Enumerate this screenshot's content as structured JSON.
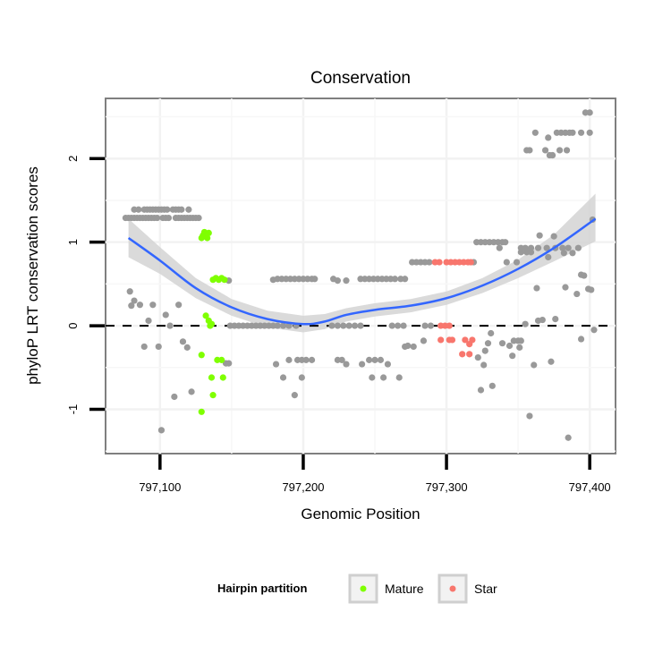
{
  "chart_data": {
    "type": "scatter",
    "title": "Conservation",
    "xlabel": "Genomic Position",
    "ylabel": "phyloP LRT conservation scores",
    "xlim": [
      797062,
      797418
    ],
    "ylim": [
      -1.53,
      2.72
    ],
    "x_ticks": [
      797100,
      797200,
      797300,
      797400
    ],
    "x_tick_labels": [
      "797,100",
      "797,200",
      "797,300",
      "797,400"
    ],
    "y_ticks": [
      -1,
      0,
      1,
      2
    ],
    "y_tick_labels": [
      "-1",
      "0",
      "1",
      "2"
    ],
    "grid": true,
    "reference_line": {
      "y": 0,
      "style": "dashed"
    },
    "legend": {
      "title": "Hairpin partition",
      "placement": "bottom",
      "entries": [
        "Mature",
        "Star"
      ]
    },
    "colors": {
      "other": "#999999",
      "Mature": "#7FFF00",
      "Star": "#F8766D",
      "smooth": "#3366FF",
      "ci": "#D3D3D3"
    },
    "series": [
      {
        "name": "other",
        "points": [
          [
            797082,
            1.39
          ],
          [
            797085,
            1.39
          ],
          [
            797089,
            1.39
          ],
          [
            797091,
            1.39
          ],
          [
            797093,
            1.39
          ],
          [
            797095,
            1.39
          ],
          [
            797097,
            1.39
          ],
          [
            797099,
            1.39
          ],
          [
            797101,
            1.39
          ],
          [
            797103,
            1.39
          ],
          [
            797105,
            1.39
          ],
          [
            797109,
            1.39
          ],
          [
            797111,
            1.39
          ],
          [
            797113,
            1.39
          ],
          [
            797115,
            1.39
          ],
          [
            797120,
            1.39
          ],
          [
            797076,
            1.29
          ],
          [
            797078,
            1.29
          ],
          [
            797080,
            1.29
          ],
          [
            797082,
            1.29
          ],
          [
            797084,
            1.29
          ],
          [
            797086,
            1.29
          ],
          [
            797088,
            1.29
          ],
          [
            797090,
            1.29
          ],
          [
            797092,
            1.29
          ],
          [
            797094,
            1.29
          ],
          [
            797096,
            1.29
          ],
          [
            797098,
            1.29
          ],
          [
            797102,
            1.29
          ],
          [
            797104,
            1.29
          ],
          [
            797106,
            1.29
          ],
          [
            797111,
            1.29
          ],
          [
            797113,
            1.29
          ],
          [
            797115,
            1.29
          ],
          [
            797117,
            1.29
          ],
          [
            797119,
            1.29
          ],
          [
            797121,
            1.29
          ],
          [
            797123,
            1.29
          ],
          [
            797125,
            1.29
          ],
          [
            797127,
            1.29
          ],
          [
            797079,
            0.41
          ],
          [
            797082,
            0.3
          ],
          [
            797080,
            0.24
          ],
          [
            797086,
            0.25
          ],
          [
            797095,
            0.25
          ],
          [
            797113,
            0.25
          ],
          [
            797104,
            0.13
          ],
          [
            797092,
            0.06
          ],
          [
            797107,
            0.0
          ],
          [
            797089,
            -0.25
          ],
          [
            797099,
            -0.25
          ],
          [
            797116,
            -0.19
          ],
          [
            797119,
            -0.26
          ],
          [
            797110,
            -0.85
          ],
          [
            797122,
            -0.79
          ],
          [
            797101,
            -1.25
          ],
          [
            797148,
            0.54
          ],
          [
            797148,
            -0.45
          ],
          [
            797146,
            -0.45
          ],
          [
            797179,
            0.55
          ],
          [
            797182,
            0.56
          ],
          [
            797185,
            0.56
          ],
          [
            797188,
            0.56
          ],
          [
            797191,
            0.56
          ],
          [
            797194,
            0.56
          ],
          [
            797197,
            0.56
          ],
          [
            797200,
            0.56
          ],
          [
            797203,
            0.56
          ],
          [
            797206,
            0.56
          ],
          [
            797208,
            0.56
          ],
          [
            797221,
            0.56
          ],
          [
            797224,
            0.54
          ],
          [
            797230,
            0.54
          ],
          [
            797240,
            0.56
          ],
          [
            797243,
            0.56
          ],
          [
            797246,
            0.56
          ],
          [
            797249,
            0.56
          ],
          [
            797252,
            0.56
          ],
          [
            797255,
            0.56
          ],
          [
            797258,
            0.56
          ],
          [
            797261,
            0.56
          ],
          [
            797264,
            0.56
          ],
          [
            797268,
            0.56
          ],
          [
            797271,
            0.56
          ],
          [
            797149,
            0
          ],
          [
            797152,
            0
          ],
          [
            797155,
            0
          ],
          [
            797158,
            0
          ],
          [
            797161,
            0
          ],
          [
            797164,
            0
          ],
          [
            797167,
            0
          ],
          [
            797170,
            0
          ],
          [
            797173,
            0
          ],
          [
            797176,
            0
          ],
          [
            797179,
            0
          ],
          [
            797182,
            0
          ],
          [
            797186,
            0
          ],
          [
            797190,
            0
          ],
          [
            797195,
            0
          ],
          [
            797220,
            0
          ],
          [
            797224,
            0
          ],
          [
            797228,
            0
          ],
          [
            797232,
            0
          ],
          [
            797236,
            0
          ],
          [
            797240,
            0
          ],
          [
            797262,
            0
          ],
          [
            797266,
            0
          ],
          [
            797270,
            0
          ],
          [
            797285,
            0
          ],
          [
            797289,
            0
          ],
          [
            797181,
            -0.46
          ],
          [
            797190,
            -0.41
          ],
          [
            797196,
            -0.41
          ],
          [
            797199,
            -0.41
          ],
          [
            797202,
            -0.41
          ],
          [
            797206,
            -0.41
          ],
          [
            797224,
            -0.41
          ],
          [
            797227,
            -0.41
          ],
          [
            797230,
            -0.46
          ],
          [
            797241,
            -0.46
          ],
          [
            797246,
            -0.41
          ],
          [
            797250,
            -0.41
          ],
          [
            797254,
            -0.41
          ],
          [
            797259,
            -0.46
          ],
          [
            797186,
            -0.62
          ],
          [
            797199,
            -0.62
          ],
          [
            797248,
            -0.62
          ],
          [
            797256,
            -0.62
          ],
          [
            797267,
            -0.62
          ],
          [
            797194,
            -0.83
          ],
          [
            797271,
            -0.25
          ],
          [
            797277,
            -0.25
          ],
          [
            797276,
            0.76
          ],
          [
            797279,
            0.76
          ],
          [
            797282,
            0.76
          ],
          [
            797285,
            0.76
          ],
          [
            797288,
            0.76
          ],
          [
            797319,
            0.76
          ],
          [
            797284,
            -0.18
          ],
          [
            797273,
            -0.24
          ],
          [
            797321,
            1.0
          ],
          [
            797324,
            1.0
          ],
          [
            797327,
            1.0
          ],
          [
            797330,
            1.0
          ],
          [
            797333,
            1.0
          ],
          [
            797336,
            1.0
          ],
          [
            797339,
            1.0
          ],
          [
            797341,
            1.0
          ],
          [
            797337,
            0.93
          ],
          [
            797342,
            0.76
          ],
          [
            797349,
            0.76
          ],
          [
            797355,
            0.02
          ],
          [
            797364,
            0.06
          ],
          [
            797367,
            0.07
          ],
          [
            797376,
            0.08
          ],
          [
            797331,
            -0.09
          ],
          [
            797329,
            -0.21
          ],
          [
            797327,
            -0.3
          ],
          [
            797322,
            -0.38
          ],
          [
            797326,
            -0.47
          ],
          [
            797324,
            -0.77
          ],
          [
            797332,
            -0.72
          ],
          [
            797339,
            -0.21
          ],
          [
            797344,
            -0.24
          ],
          [
            797347,
            -0.18
          ],
          [
            797350,
            -0.18
          ],
          [
            797352,
            -0.18
          ],
          [
            797346,
            -0.36
          ],
          [
            797351,
            -0.26
          ],
          [
            797361,
            -0.47
          ],
          [
            797373,
            -0.43
          ],
          [
            797358,
            -1.08
          ],
          [
            797385,
            -1.34
          ],
          [
            797394,
            -0.16
          ],
          [
            797403,
            -0.05
          ],
          [
            797363,
            0.45
          ],
          [
            797383,
            0.46
          ],
          [
            797391,
            0.38
          ],
          [
            797399,
            0.44
          ],
          [
            797401,
            0.43
          ],
          [
            797394,
            0.61
          ],
          [
            797396,
            0.6
          ],
          [
            797365,
            1.08
          ],
          [
            797375,
            1.07
          ],
          [
            797352,
            0.93
          ],
          [
            797355,
            0.93
          ],
          [
            797359,
            0.93
          ],
          [
            797364,
            0.93
          ],
          [
            797370,
            0.93
          ],
          [
            797376,
            0.93
          ],
          [
            797381,
            0.93
          ],
          [
            797385,
            0.93
          ],
          [
            797392,
            0.93
          ],
          [
            797352,
            0.88
          ],
          [
            797356,
            0.88
          ],
          [
            797359,
            0.88
          ],
          [
            797371,
            0.82
          ],
          [
            797382,
            0.87
          ],
          [
            797388,
            0.87
          ],
          [
            797402,
            1.27
          ],
          [
            797397,
            2.55
          ],
          [
            797400,
            2.55
          ],
          [
            797362,
            2.31
          ],
          [
            797377,
            2.31
          ],
          [
            797380,
            2.31
          ],
          [
            797383,
            2.31
          ],
          [
            797386,
            2.31
          ],
          [
            797388,
            2.31
          ],
          [
            797394,
            2.31
          ],
          [
            797400,
            2.31
          ],
          [
            797371,
            2.25
          ],
          [
            797356,
            2.1
          ],
          [
            797358,
            2.1
          ],
          [
            797369,
            2.1
          ],
          [
            797379,
            2.1
          ],
          [
            797384,
            2.1
          ],
          [
            797372,
            2.04
          ],
          [
            797374,
            2.04
          ]
        ]
      },
      {
        "name": "Mature",
        "points": [
          [
            797129,
            1.05
          ],
          [
            797131,
            1.12
          ],
          [
            797133,
            1.05
          ],
          [
            797134,
            1.11
          ],
          [
            797130,
            1.08
          ],
          [
            797137,
            0.55
          ],
          [
            797139,
            0.57
          ],
          [
            797141,
            0.55
          ],
          [
            797143,
            0.57
          ],
          [
            797145,
            0.55
          ],
          [
            797132,
            0.12
          ],
          [
            797134,
            0.06
          ],
          [
            797135,
            0.0
          ],
          [
            797136,
            0.02
          ],
          [
            797129,
            -0.35
          ],
          [
            797140,
            -0.41
          ],
          [
            797143,
            -0.41
          ],
          [
            797136,
            -0.62
          ],
          [
            797144,
            -0.62
          ],
          [
            797137,
            -0.83
          ],
          [
            797129,
            -1.03
          ]
        ]
      },
      {
        "name": "Star",
        "points": [
          [
            797292,
            0.76
          ],
          [
            797295,
            0.76
          ],
          [
            797300,
            0.76
          ],
          [
            797303,
            0.76
          ],
          [
            797306,
            0.76
          ],
          [
            797309,
            0.76
          ],
          [
            797312,
            0.76
          ],
          [
            797315,
            0.76
          ],
          [
            797317,
            0.76
          ],
          [
            797296,
            0.0
          ],
          [
            797299,
            0.0
          ],
          [
            797302,
            0.0
          ],
          [
            797296,
            -0.17
          ],
          [
            797302,
            -0.17
          ],
          [
            797304,
            -0.17
          ],
          [
            797313,
            -0.17
          ],
          [
            797318,
            -0.17
          ],
          [
            797316,
            -0.22
          ],
          [
            797311,
            -0.34
          ],
          [
            797316,
            -0.34
          ]
        ]
      }
    ],
    "smooth": {
      "method": "loess",
      "x": [
        797078,
        797100,
        797125,
        797150,
        797175,
        797200,
        797215,
        797230,
        797250,
        797275,
        797300,
        797325,
        797350,
        797375,
        797404
      ],
      "y": [
        1.05,
        0.78,
        0.45,
        0.22,
        0.08,
        0.02,
        0.05,
        0.13,
        0.19,
        0.24,
        0.33,
        0.48,
        0.68,
        0.93,
        1.28
      ],
      "ymin": [
        0.82,
        0.62,
        0.33,
        0.12,
        -0.02,
        -0.08,
        -0.04,
        0.05,
        0.11,
        0.16,
        0.25,
        0.39,
        0.57,
        0.77,
        1.01
      ],
      "ymax": [
        1.28,
        0.94,
        0.57,
        0.32,
        0.18,
        0.12,
        0.14,
        0.21,
        0.27,
        0.32,
        0.41,
        0.57,
        0.79,
        1.09,
        1.58
      ]
    }
  }
}
